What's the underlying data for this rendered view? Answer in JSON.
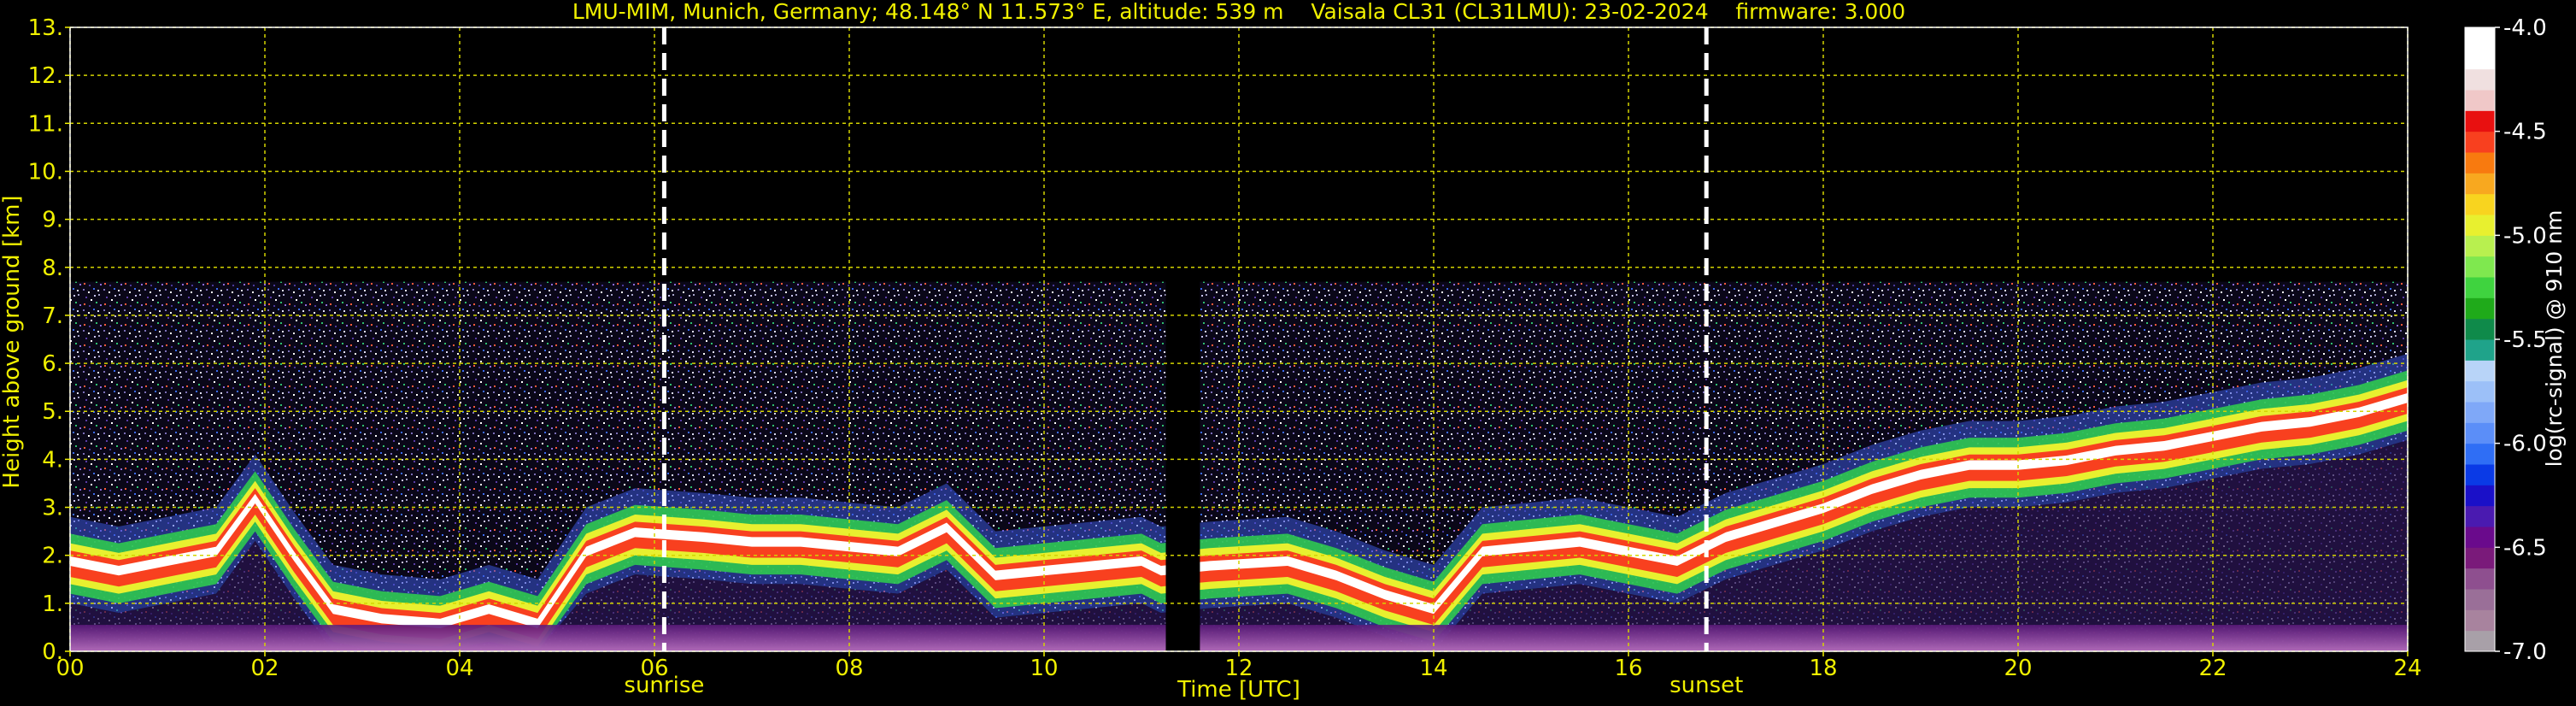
{
  "chart_data": {
    "type": "heatmap",
    "title": "LMU-MIM, Munich, Germany; 48.148° N 11.573° E, altitude: 539 m    Vaisala CL31 (CL31LMU): 23-02-2024    firmware: 3.000",
    "xlabel": "Time [UTC]",
    "ylabel": "Height above ground [km]",
    "xlim": [
      0,
      24
    ],
    "ylim": [
      0,
      13
    ],
    "xticks": [
      "00",
      "02",
      "04",
      "06",
      "08",
      "10",
      "12",
      "14",
      "16",
      "18",
      "20",
      "22",
      "24"
    ],
    "yticks": [
      "0.",
      "1.",
      "2.",
      "3.",
      "4.",
      "5.",
      "6.",
      "7.",
      "8.",
      "9.",
      "10.",
      "11.",
      "12.",
      "13."
    ],
    "grid": true,
    "markers": [
      {
        "label": "sunrise",
        "time": 6.1
      },
      {
        "label": "sunset",
        "time": 16.8
      }
    ],
    "colorbar": {
      "label": "log(rc-signal) @ 910 nm",
      "range": [
        -7.0,
        -4.0
      ],
      "ticks": [
        "-4.0",
        "-4.5",
        "-5.0",
        "-5.5",
        "-6.0",
        "-6.5",
        "-7.0"
      ],
      "colors": [
        "#a8a0a8",
        "#a8839e",
        "#9a6f98",
        "#8e4f8f",
        "#7a1a7a",
        "#6a0a8c",
        "#4a1ab0",
        "#1a10c8",
        "#0a3ae6",
        "#2f6ef5",
        "#5b8ef8",
        "#7fa8f8",
        "#9cc0f8",
        "#b8d4f8",
        "#1fa38a",
        "#0f8a4a",
        "#1faa1a",
        "#3fd33f",
        "#7fe84f",
        "#b8f04f",
        "#e8f02f",
        "#f8d41f",
        "#f8a81f",
        "#f87a0f",
        "#f8401f",
        "#e81010",
        "#f0c8c8",
        "#f0e0e0",
        "#ffffff",
        "#ffffff"
      ]
    },
    "data_gap": [
      11.25,
      11.6
    ],
    "boundary_layer_top_km": [
      {
        "t": 0.0,
        "h": 1.9
      },
      {
        "t": 0.5,
        "h": 1.7
      },
      {
        "t": 1.0,
        "h": 1.9
      },
      {
        "t": 1.5,
        "h": 2.1
      },
      {
        "t": 1.9,
        "h": 3.2
      },
      {
        "t": 2.3,
        "h": 2.0
      },
      {
        "t": 2.7,
        "h": 0.9
      },
      {
        "t": 3.2,
        "h": 0.7
      },
      {
        "t": 3.8,
        "h": 0.6
      },
      {
        "t": 4.3,
        "h": 0.9
      },
      {
        "t": 4.8,
        "h": 0.6
      },
      {
        "t": 5.3,
        "h": 2.1
      },
      {
        "t": 5.8,
        "h": 2.5
      },
      {
        "t": 6.5,
        "h": 2.4
      },
      {
        "t": 7.0,
        "h": 2.3
      },
      {
        "t": 7.5,
        "h": 2.3
      },
      {
        "t": 8.0,
        "h": 2.2
      },
      {
        "t": 8.5,
        "h": 2.1
      },
      {
        "t": 9.0,
        "h": 2.6
      },
      {
        "t": 9.5,
        "h": 1.6
      },
      {
        "t": 10.0,
        "h": 1.7
      },
      {
        "t": 10.5,
        "h": 1.8
      },
      {
        "t": 11.0,
        "h": 1.9
      },
      {
        "t": 11.2,
        "h": 1.7
      },
      {
        "t": 11.7,
        "h": 1.8
      },
      {
        "t": 12.5,
        "h": 1.9
      },
      {
        "t": 13.0,
        "h": 1.6
      },
      {
        "t": 13.5,
        "h": 1.2
      },
      {
        "t": 14.0,
        "h": 0.9
      },
      {
        "t": 14.5,
        "h": 2.1
      },
      {
        "t": 15.0,
        "h": 2.2
      },
      {
        "t": 15.5,
        "h": 2.3
      },
      {
        "t": 16.0,
        "h": 2.1
      },
      {
        "t": 16.5,
        "h": 1.9
      },
      {
        "t": 17.0,
        "h": 2.4
      },
      {
        "t": 17.5,
        "h": 2.7
      },
      {
        "t": 18.0,
        "h": 3.0
      },
      {
        "t": 18.5,
        "h": 3.4
      },
      {
        "t": 19.0,
        "h": 3.7
      },
      {
        "t": 19.5,
        "h": 3.9
      },
      {
        "t": 20.0,
        "h": 3.9
      },
      {
        "t": 20.5,
        "h": 4.0
      },
      {
        "t": 21.0,
        "h": 4.2
      },
      {
        "t": 21.5,
        "h": 4.3
      },
      {
        "t": 22.0,
        "h": 4.5
      },
      {
        "t": 22.5,
        "h": 4.7
      },
      {
        "t": 23.0,
        "h": 4.8
      },
      {
        "t": 23.5,
        "h": 5.0
      },
      {
        "t": 24.0,
        "h": 5.3
      }
    ],
    "noise_top_km": 7.7
  },
  "colors": {
    "background": "#000000",
    "axis_text": "#f0f000",
    "grid": "#d4d400",
    "colorbar_text": "#ffffff",
    "marker_line": "#ffffff"
  }
}
